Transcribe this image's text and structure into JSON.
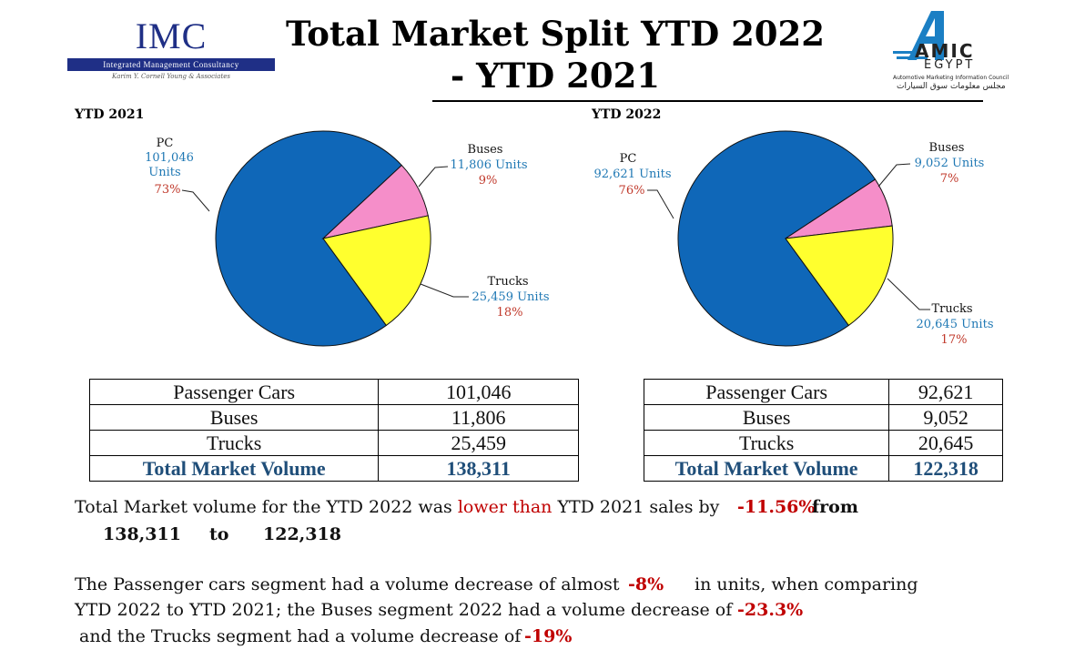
{
  "header": {
    "title_line1": "Total Market Split YTD 2022",
    "title_line2": "- YTD 2021",
    "imc_logo": {
      "name": "IMC",
      "bar_text": "Integrated Management Consultancy",
      "sub_text": "Karim Y. Cornell Young & Associates"
    },
    "amic_logo": {
      "name": "AMIC",
      "country": "EGYPT",
      "english": "Automotive Marketing Information Council",
      "arabic": "مجلس معلومات سوق السيارات"
    }
  },
  "colors": {
    "pc": "#0f67b8",
    "buses": "#f58ec9",
    "trucks": "#ffff2e",
    "value_blue": "#1f78b4",
    "percent_red": "#c0392b",
    "total_blue": "#1f4e79"
  },
  "chart_data": [
    {
      "type": "pie",
      "title": "YTD 2021",
      "categories": [
        "PC",
        "Buses",
        "Trucks"
      ],
      "values": [
        101046,
        11806,
        25459
      ],
      "value_labels": [
        "101,046 Units",
        "11,806 Units",
        "25,459 Units"
      ],
      "percent_labels": [
        "73%",
        "9%",
        "18%"
      ]
    },
    {
      "type": "pie",
      "title": "YTD 2022",
      "categories": [
        "PC",
        "Buses",
        "Trucks"
      ],
      "values": [
        92621,
        9052,
        20645
      ],
      "value_labels": [
        "92,621 Units",
        "9,052 Units",
        "20,645 Units"
      ],
      "percent_labels": [
        "76%",
        "7%",
        "17%"
      ]
    }
  ],
  "labels2021": {
    "pc": {
      "name": "PC",
      "value_a": "101,046",
      "value_b": "Units",
      "pct": "73%"
    },
    "buses": {
      "name": "Buses",
      "value": "11,806 Units",
      "pct": "9%"
    },
    "trucks": {
      "name": "Trucks",
      "value": "25,459 Units",
      "pct": "18%"
    }
  },
  "labels2022": {
    "pc": {
      "name": "PC",
      "value": "92,621 Units",
      "pct": "76%"
    },
    "buses": {
      "name": "Buses",
      "value": "9,052 Units",
      "pct": "7%"
    },
    "trucks": {
      "name": "Trucks",
      "value": "20,645 Units",
      "pct": "17%"
    }
  },
  "table2021": {
    "rows": [
      [
        "Passenger Cars",
        "101,046"
      ],
      [
        "Buses",
        "11,806"
      ],
      [
        "Trucks",
        "25,459"
      ]
    ],
    "total": [
      "Total Market Volume",
      "138,311"
    ]
  },
  "table2022": {
    "rows": [
      [
        "Passenger Cars",
        "92,621"
      ],
      [
        "Buses",
        "9,052"
      ],
      [
        "Trucks",
        "20,645"
      ]
    ],
    "total": [
      "Total Market Volume",
      "122,318"
    ]
  },
  "summary": {
    "p1_a": "Total Market volume for the YTD 2022 was ",
    "p1_b": "lower than",
    "p1_c": " YTD 2021 sales by",
    "p1_change": "-11.56%",
    "p1_from": "from",
    "p1_start": "138,311",
    "p1_to": "to",
    "p1_end": "122,318",
    "p2_a": "The Passenger cars segment had a volume decrease of almost",
    "p2_pc": "-8%",
    "p2_b": "in units, when comparing",
    "p2_c": "YTD 2022 to YTD 2021; the Buses segment 2022  had a volume decrease of",
    "p2_bus": "-23.3%",
    "p2_d": "and the Trucks segment had a volume decrease of",
    "p2_trucks": "-19%"
  }
}
